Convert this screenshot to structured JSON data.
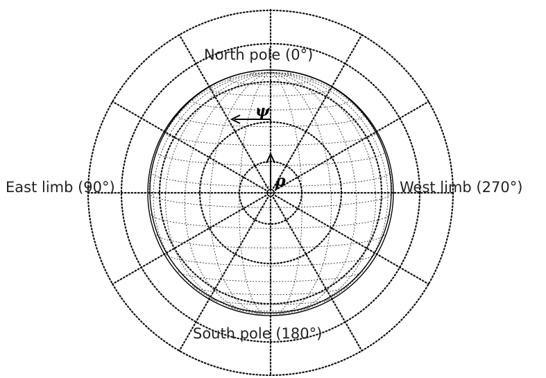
{
  "labels": {
    "north": "North pole (0°)",
    "south": "South pole (180°)",
    "east": "East limb (90°)",
    "west": "West limb (270°)",
    "psi": "ψ",
    "rho": "ρ"
  },
  "colors": {
    "stroke": "#111111",
    "background": "#ffffff"
  }
}
